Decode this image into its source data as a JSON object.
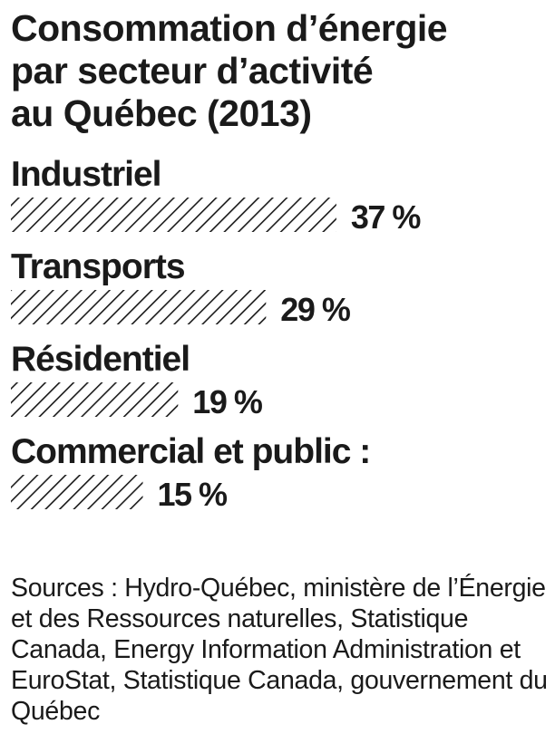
{
  "title_lines": [
    "Consommation d’énergie",
    "par secteur d’activité",
    "au Québec (2013)"
  ],
  "chart_data": {
    "type": "bar",
    "orientation": "horizontal",
    "title": "Consommation d’énergie par secteur d’activité au Québec (2013)",
    "categories": [
      "Industriel",
      "Transports",
      "Résidentiel",
      "Commercial et public :"
    ],
    "values": [
      37,
      29,
      19,
      15
    ],
    "value_labels": [
      "37 %",
      "29 %",
      "19 %",
      "15 %"
    ],
    "unit": "%",
    "bar_style": "diagonal-hatch",
    "bar_color": "#1a1a1a",
    "grid": false,
    "legend": "none"
  },
  "sources": "Sources : Hydro-Québec, ministère de l’Énergie et des Ressources naturelles, Statistique Canada, Energy Information Administration et EuroStat, Statistique Canada, gouvernement du Québec"
}
